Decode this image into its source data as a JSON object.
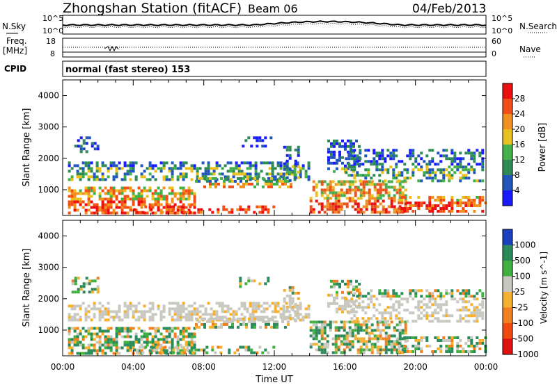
{
  "header": {
    "title": "Zhongshan Station (fitACF)",
    "beam": "Beam 06",
    "date": "04/Feb/2013"
  },
  "top_panels": {
    "nsky_label": "N.Sky",
    "nsearch_label": "N.Search",
    "freq_label": "Freq.",
    "freq_unit": "[MHz]",
    "nave_label": "Nave",
    "cpid_label": "CPID",
    "cpid_text": "normal (fast stereo) 153",
    "noise_ticks": [
      "10^5",
      "10^0"
    ],
    "freq_ticks": [
      "18",
      "8"
    ],
    "nave_ticks": [
      "60",
      "0"
    ]
  },
  "chart_data": [
    {
      "type": "heatmap",
      "name": "power",
      "ylabel": "Slant Range [km]",
      "ylim": [
        180,
        4500
      ],
      "yticks": [
        "1000",
        "2000",
        "3000",
        "4000"
      ],
      "xlim": [
        0,
        24
      ],
      "colorbar": {
        "label": "Power [dB]",
        "ticks": [
          "4",
          "8",
          "12",
          "16",
          "20",
          "24",
          "28"
        ],
        "colors": [
          "#1a1aff",
          "#2255bb",
          "#2f8a55",
          "#44b04a",
          "#e8c020",
          "#f09020",
          "#f05018",
          "#e81010"
        ]
      }
    },
    {
      "type": "heatmap",
      "name": "velocity",
      "ylabel": "Slant Range [km]",
      "ylim": [
        180,
        4500
      ],
      "yticks": [
        "1000",
        "2000",
        "3000",
        "4000"
      ],
      "xlim": [
        0,
        24
      ],
      "xlabel": "Time UT",
      "xticks": [
        "00:00",
        "04:00",
        "08:00",
        "12:00",
        "16:00",
        "20:00",
        "00:00"
      ],
      "colorbar": {
        "label": "Velocity [m s^-1]",
        "ticks": [
          "1000",
          "500",
          "100",
          "25",
          "-25",
          "-100",
          "-500",
          "-1000"
        ],
        "colors": [
          "#1a3fbf",
          "#2a8a5a",
          "#40b040",
          "#c8c8c0",
          "#f5b030",
          "#f08020",
          "#f04a10",
          "#e01010"
        ]
      }
    }
  ]
}
